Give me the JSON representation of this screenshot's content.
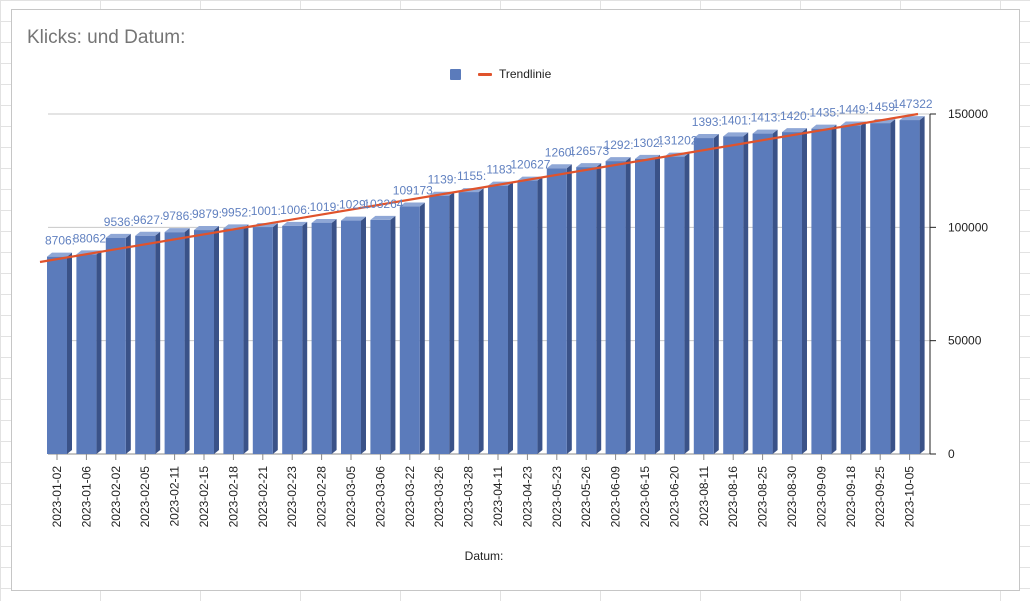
{
  "chart_data": {
    "type": "bar",
    "title": "Klicks: und Datum:",
    "xlabel": "Datum:",
    "ylabel": "",
    "ylim": [
      0,
      150000
    ],
    "y_ticks": [
      0,
      50000,
      100000,
      150000
    ],
    "y_axis_side": "right",
    "grid": true,
    "style": "3d",
    "legend": {
      "position": "top",
      "entries": [
        {
          "label": "",
          "marker": "square"
        },
        {
          "label": "Trendlinie",
          "marker": "line"
        }
      ]
    },
    "categories": [
      "2023-01-02",
      "2023-01-06",
      "2023-02-02",
      "2023-02-05",
      "2023-02-11",
      "2023-02-15",
      "2023-02-18",
      "2023-02-21",
      "2023-02-23",
      "2023-02-28",
      "2023-03-05",
      "2023-03-06",
      "2023-03-22",
      "2023-03-26",
      "2023-03-28",
      "2023-04-11",
      "2023-04-23",
      "2023-05-23",
      "2023-05-26",
      "2023-06-09",
      "2023-06-15",
      "2023-06-20",
      "2023-08-11",
      "2023-08-16",
      "2023-08-25",
      "2023-08-30",
      "2023-09-09",
      "2023-09-18",
      "2023-09-25",
      "2023-10-05"
    ],
    "values": [
      87062,
      88062,
      95367,
      96277,
      97867,
      98797,
      99527,
      100117,
      100637,
      101937,
      102977,
      103264,
      109173,
      113937,
      115557,
      118387,
      120627,
      126057,
      126573,
      129217,
      130217,
      131202,
      139387,
      140137,
      141357,
      142017,
      143527,
      144907,
      145977,
      147322
    ],
    "data_labels": [
      "8706:",
      "88062",
      "9536:",
      "9627:",
      "9786:",
      "9879:",
      "9952:",
      "1001:",
      "1006:",
      "1019:",
      "1029:",
      "103264",
      "109173",
      "1139:",
      "1155:",
      "1183:",
      "120627",
      "1260:",
      "126573",
      "1292:",
      "1302:",
      "131202",
      "1393:",
      "1401:",
      "1413:",
      "1420:",
      "1435:",
      "1449:",
      "1459:",
      "147322"
    ],
    "trendline": {
      "label": "Trendlinie",
      "start": 84700,
      "end": 150000
    },
    "colors": {
      "bar_front": "#5b7bbb",
      "bar_side": "#3a5288",
      "bar_top": "#8fa7d6",
      "trendline": "#e0532c",
      "label": "#6181c0",
      "grid": "#c8c8c8",
      "axis": "#222222",
      "title": "#757575"
    }
  }
}
